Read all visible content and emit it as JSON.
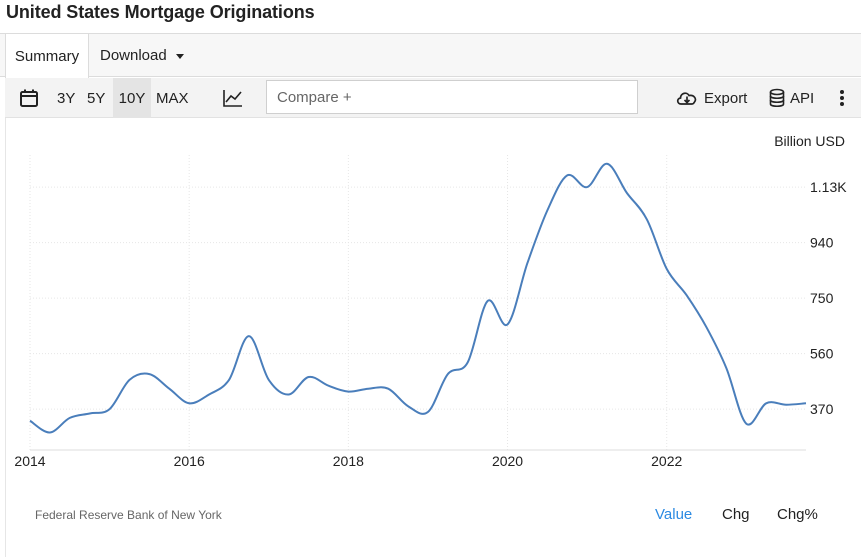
{
  "title": "United States Mortgage Originations",
  "tabs": {
    "summary": "Summary",
    "download": "Download"
  },
  "toolbar": {
    "ranges": [
      "3Y",
      "5Y",
      "10Y",
      "MAX"
    ],
    "selected_range": "10Y",
    "compare_placeholder": "Compare +",
    "export": "Export",
    "api": "API"
  },
  "icons": [
    "calendar-icon",
    "line-chart-icon",
    "cloud-download-icon",
    "database-icon",
    "more-icon"
  ],
  "source": "Federal Reserve Bank of New York",
  "modes": {
    "value": "Value",
    "chg": "Chg",
    "chgp": "Chg%"
  },
  "colors": {
    "line": "#4a7ebb",
    "accent": "#2b8ae2"
  },
  "chart_data": {
    "type": "line",
    "unit": "Billion USD",
    "x_ticks": [
      "2014",
      "2016",
      "2018",
      "2020",
      "2022"
    ],
    "y_ticks": [
      "370",
      "560",
      "750",
      "940",
      "1.13K"
    ],
    "y_tick_values": [
      370,
      560,
      750,
      940,
      1130
    ],
    "ylim": [
      230,
      1240
    ],
    "xlim": [
      2014.0,
      2023.75
    ],
    "series": [
      {
        "x": [
          2014.0,
          2014.25,
          2014.5,
          2014.75,
          2015.0,
          2015.25,
          2015.5,
          2015.75,
          2016.0,
          2016.25,
          2016.5,
          2016.75,
          2017.0,
          2017.25,
          2017.5,
          2017.75,
          2018.0,
          2018.25,
          2018.5,
          2018.75,
          2019.0,
          2019.25,
          2019.5,
          2019.75,
          2020.0,
          2020.25,
          2020.5,
          2020.75,
          2021.0,
          2021.25,
          2021.5,
          2021.75,
          2022.0,
          2022.25,
          2022.5,
          2022.75,
          2023.0,
          2023.25,
          2023.5,
          2023.75
        ],
        "values": [
          330,
          290,
          340,
          355,
          370,
          470,
          490,
          440,
          390,
          420,
          470,
          620,
          470,
          420,
          480,
          450,
          430,
          440,
          440,
          380,
          360,
          490,
          530,
          740,
          660,
          870,
          1050,
          1170,
          1130,
          1210,
          1110,
          1020,
          850,
          760,
          650,
          510,
          320,
          390,
          385,
          390
        ]
      }
    ],
    "grid": true,
    "legend": "none"
  }
}
